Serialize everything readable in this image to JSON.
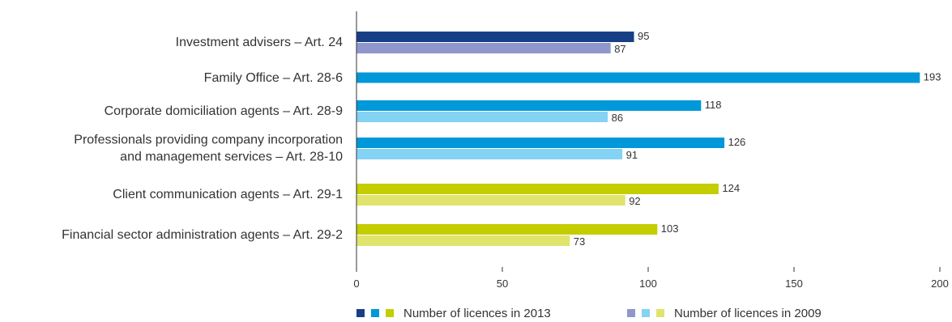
{
  "chart_data": {
    "type": "bar",
    "orientation": "horizontal",
    "categories": [
      [
        "Investment advisers – Art. 24"
      ],
      [
        "Family Office – Art. 28-6"
      ],
      [
        "Corporate domiciliation agents – Art. 28-9"
      ],
      [
        "Professionals providing company incorporation",
        "and management services – Art. 28-10"
      ],
      [
        "Client communication agents – Art. 29-1"
      ],
      [
        "Financial sector administration agents – Art. 29-2"
      ]
    ],
    "series": [
      {
        "name": "Number of licences in 2013",
        "values": [
          95,
          193,
          118,
          126,
          124,
          103
        ],
        "colors": [
          "#173f86",
          "#0098d8",
          "#0098d8",
          "#0098d8",
          "#c3cd00",
          "#c3cd00"
        ]
      },
      {
        "name": "Number of licences in 2009",
        "values": [
          87,
          null,
          86,
          91,
          92,
          73
        ],
        "colors": [
          "#8f98cc",
          "#84d2f4",
          "#84d2f4",
          "#84d2f4",
          "#e0e46c",
          "#e0e46c"
        ]
      }
    ],
    "xlim": [
      0,
      200
    ],
    "xticks": [
      "0",
      "50",
      "100",
      "150",
      "200"
    ],
    "legend": {
      "placement": "bottom",
      "items": [
        {
          "label": "Number of licences in 2013",
          "swatches": [
            "#173f86",
            "#0098d8",
            "#c3cd00"
          ]
        },
        {
          "label": "Number of licences in 2009",
          "swatches": [
            "#8f98cc",
            "#84d2f4",
            "#e0e46c"
          ]
        }
      ]
    },
    "grid": false
  }
}
